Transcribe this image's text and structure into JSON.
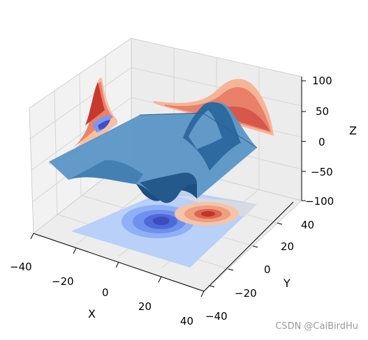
{
  "chart_data": {
    "type": "surface3d",
    "xlabel": "X",
    "ylabel": "Y",
    "zlabel": "Z",
    "xlim": [
      -40,
      40
    ],
    "ylim": [
      -40,
      40
    ],
    "zlim": [
      -100,
      100
    ],
    "xticks": [
      "−40",
      "−20",
      "0",
      "20",
      "40"
    ],
    "yticks": [
      "−20",
      "0",
      "20",
      "40",
      "−40"
    ],
    "zticks": [
      "100",
      "50",
      "0",
      "−50",
      "−100"
    ],
    "surface": {
      "function": "axes3d test data (sum of two gaussians)",
      "z_range": [
        -70,
        70
      ],
      "color": "#2f6fa5"
    },
    "contour_projections": [
      {
        "plane": "z",
        "offset": -100,
        "cmap": "coolwarm"
      },
      {
        "plane": "x",
        "offset": -40,
        "cmap": "coolwarm"
      },
      {
        "plane": "y",
        "offset": 40,
        "cmap": "coolwarm"
      }
    ],
    "colors": {
      "cool": "#3a4cc0",
      "cool_light": "#b3cdfb",
      "warm": "#c4342a",
      "warm_light": "#f5a98a",
      "pane": "#f2f2f2",
      "grid": "#cfcfcf"
    }
  },
  "watermark": "CSDN @CaiBirdHu"
}
